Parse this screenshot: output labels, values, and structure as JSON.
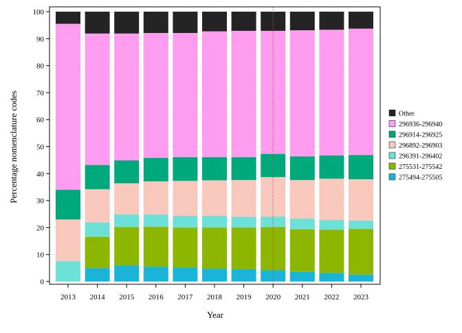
{
  "chart_data": {
    "type": "bar",
    "stacked": true,
    "categories": [
      "2013",
      "2014",
      "2015",
      "2016",
      "2017",
      "2018",
      "2019",
      "2020",
      "2021",
      "2022",
      "2023"
    ],
    "xlabel": "Year",
    "ylabel": "Percentage nomenclature codes",
    "ylim": [
      0,
      100
    ],
    "yticks": [
      0,
      10,
      20,
      30,
      40,
      50,
      60,
      70,
      80,
      90,
      100
    ],
    "grid": true,
    "legend_position": "right",
    "reference_line": {
      "x": "2020",
      "style": "dotted",
      "color": "#b05050"
    },
    "series": [
      {
        "name": "275494-275505",
        "color": "#1ab4d9",
        "values": [
          0.0,
          5.0,
          6.0,
          5.5,
          5.2,
          4.8,
          4.6,
          4.2,
          3.6,
          3.2,
          2.6
        ]
      },
      {
        "name": "275531-275542",
        "color": "#8db600",
        "values": [
          0.0,
          11.6,
          14.2,
          14.8,
          14.8,
          15.2,
          15.4,
          16.0,
          15.8,
          16.0,
          16.9
        ]
      },
      {
        "name": "296391-296402",
        "color": "#6de0d8",
        "values": [
          7.6,
          5.3,
          4.7,
          4.5,
          4.3,
          4.3,
          4.0,
          3.9,
          3.9,
          3.6,
          3.1
        ]
      },
      {
        "name": "296892-296903",
        "color": "#f9c8bc",
        "values": [
          15.4,
          12.3,
          11.5,
          12.3,
          13.0,
          13.2,
          13.6,
          14.6,
          14.3,
          15.3,
          15.3
        ]
      },
      {
        "name": "296914-296925",
        "color": "#00a97c",
        "values": [
          11.0,
          9.0,
          8.5,
          8.7,
          8.8,
          8.6,
          8.5,
          8.6,
          8.8,
          8.6,
          9.0
        ]
      },
      {
        "name": "296936-296940",
        "color": "#ff9cf0",
        "values": [
          61.5,
          48.7,
          47.0,
          46.3,
          46.0,
          46.6,
          46.8,
          45.6,
          46.7,
          46.6,
          46.8
        ]
      },
      {
        "name": "Other",
        "color": "#242424",
        "values": [
          4.5,
          8.1,
          8.1,
          7.9,
          7.9,
          7.3,
          7.1,
          7.1,
          6.9,
          6.7,
          6.3
        ]
      }
    ]
  }
}
